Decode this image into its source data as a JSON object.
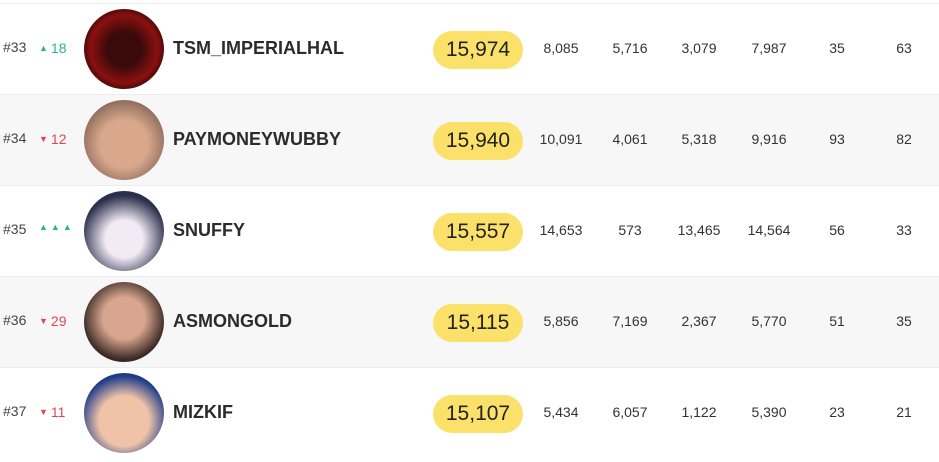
{
  "table": {
    "rows": [
      {
        "rank": "#33",
        "trend": "up",
        "change": "18",
        "name": "TSM_IMPERIALHAL",
        "score": "15,974",
        "stats": [
          "8,085",
          "5,716",
          "3,079",
          "7,987",
          "35",
          "63"
        ]
      },
      {
        "rank": "#34",
        "trend": "down",
        "change": "12",
        "name": "PAYMONEYWUBBY",
        "score": "15,940",
        "stats": [
          "10,091",
          "4,061",
          "5,318",
          "9,916",
          "93",
          "82"
        ]
      },
      {
        "rank": "#35",
        "trend": "new",
        "name": "SNUFFY",
        "score": "15,557",
        "stats": [
          "14,653",
          "573",
          "13,465",
          "14,564",
          "56",
          "33"
        ]
      },
      {
        "rank": "#36",
        "trend": "down",
        "change": "29",
        "name": "ASMONGOLD",
        "score": "15,115",
        "stats": [
          "5,856",
          "7,169",
          "2,367",
          "5,770",
          "51",
          "35"
        ]
      },
      {
        "rank": "#37",
        "trend": "down",
        "change": "11",
        "name": "MIZKIF",
        "score": "15,107",
        "stats": [
          "5,434",
          "6,057",
          "1,122",
          "5,390",
          "23",
          "21"
        ]
      }
    ]
  }
}
